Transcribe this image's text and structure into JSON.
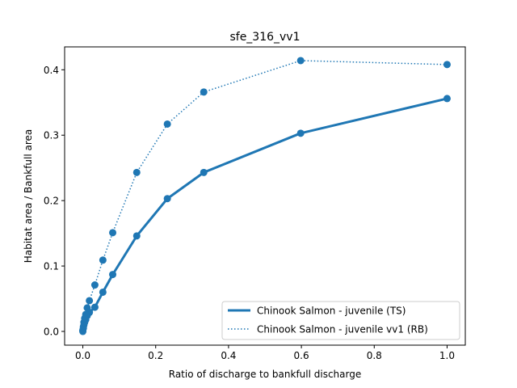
{
  "chart_data": {
    "type": "line",
    "title": "sfe_316_vv1",
    "xlabel": "Ratio of discharge to bankfull discharge",
    "ylabel": "Habitat area / Bankfull area",
    "xlim": [
      -0.05,
      1.05
    ],
    "ylim": [
      -0.021,
      0.435
    ],
    "xticks": [
      {
        "value": 0.0,
        "label": "0.0"
      },
      {
        "value": 0.2,
        "label": "0.2"
      },
      {
        "value": 0.4,
        "label": "0.4"
      },
      {
        "value": 0.6,
        "label": "0.6"
      },
      {
        "value": 0.8,
        "label": "0.8"
      },
      {
        "value": 1.0,
        "label": "1.0"
      }
    ],
    "yticks": [
      {
        "value": 0.0,
        "label": "0.0"
      },
      {
        "value": 0.1,
        "label": "0.1"
      },
      {
        "value": 0.2,
        "label": "0.2"
      },
      {
        "value": 0.3,
        "label": "0.3"
      },
      {
        "value": 0.4,
        "label": "0.4"
      }
    ],
    "grid": false,
    "legend_position": "lower-right",
    "series": [
      {
        "name": "Chinook Salmon - juvenile (TS)",
        "style": "solid",
        "color": "#1f77b4",
        "x": [
          0.0,
          0.0015,
          0.003,
          0.005,
          0.008,
          0.012,
          0.018,
          0.033,
          0.055,
          0.082,
          0.148,
          0.232,
          0.332,
          0.598,
          1.0
        ],
        "y": [
          0.0,
          0.005,
          0.01,
          0.014,
          0.018,
          0.024,
          0.029,
          0.037,
          0.06,
          0.087,
          0.146,
          0.203,
          0.243,
          0.303,
          0.356
        ]
      },
      {
        "name": "Chinook Salmon - juvenile vv1 (RB)",
        "style": "dotted",
        "color": "#1f77b4",
        "x": [
          0.0,
          0.0015,
          0.003,
          0.005,
          0.008,
          0.012,
          0.018,
          0.033,
          0.055,
          0.082,
          0.148,
          0.232,
          0.332,
          0.598,
          1.0
        ],
        "y": [
          0.002,
          0.007,
          0.014,
          0.02,
          0.026,
          0.036,
          0.047,
          0.071,
          0.109,
          0.151,
          0.243,
          0.317,
          0.366,
          0.414,
          0.408
        ]
      }
    ]
  }
}
